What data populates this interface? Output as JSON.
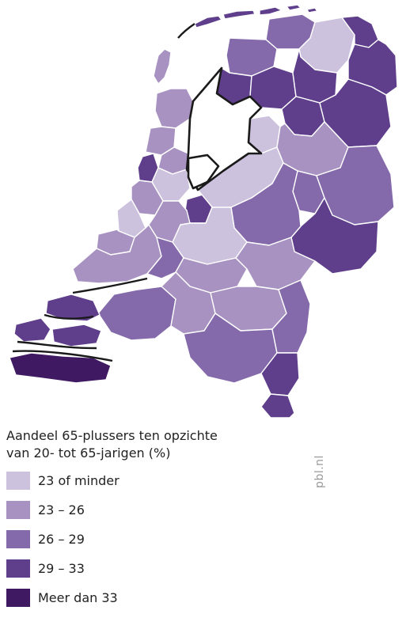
{
  "legend": {
    "title_line1": "Aandeel 65-plussers ten opzichte",
    "title_line2": "van 20- tot 65-jarigen (%)",
    "items": [
      {
        "label": "23 of minder",
        "color": "#cdc2de"
      },
      {
        "label": "23 – 26",
        "color": "#a892c1"
      },
      {
        "label": "26 – 29",
        "color": "#846aab"
      },
      {
        "label": "29 – 33",
        "color": "#5f3f8c"
      },
      {
        "label": "Meer dan 33",
        "color": "#3f1a63"
      }
    ]
  },
  "credit": "pbl.nl",
  "map": {
    "subject": "Netherlands COROP regions",
    "regions": [
      {
        "name": "texel",
        "class": 1
      },
      {
        "name": "noord-groningen-oost",
        "class": 0
      },
      {
        "name": "noord-groningen-west",
        "class": 2
      },
      {
        "name": "delfzijl-en-omgeving",
        "class": 3
      },
      {
        "name": "noord-friesland",
        "class": 3
      },
      {
        "name": "zuidwest-friesland",
        "class": 3
      },
      {
        "name": "zuidoost-friesland",
        "class": 3
      },
      {
        "name": "oost-groningen",
        "class": 3
      },
      {
        "name": "noord-drenthe",
        "class": 3
      },
      {
        "name": "zuidwest-drenthe",
        "class": 3
      },
      {
        "name": "zuidoost-drenthe",
        "class": 3
      },
      {
        "name": "kop-van-noord-holland",
        "class": 1
      },
      {
        "name": "alkmaar-en-omgeving",
        "class": 1
      },
      {
        "name": "ijmond",
        "class": 3
      },
      {
        "name": "zaanstreek",
        "class": 1
      },
      {
        "name": "groot-amsterdam",
        "class": 0
      },
      {
        "name": "het-gooi-en-vechtstreek",
        "class": 3
      },
      {
        "name": "flevoland-noord",
        "class": 0
      },
      {
        "name": "flevoland-zuid",
        "class": 0
      },
      {
        "name": "noord-overijssel",
        "class": 1
      },
      {
        "name": "zuidwest-overijssel",
        "class": 2
      },
      {
        "name": "twente",
        "class": 2
      },
      {
        "name": "achterhoek",
        "class": 3
      },
      {
        "name": "veluwe",
        "class": 2
      },
      {
        "name": "utrecht",
        "class": 0
      },
      {
        "name": "agglomeratie-leiden",
        "class": 1
      },
      {
        "name": "agglomeratie-den-haag",
        "class": 0
      },
      {
        "name": "delft-en-westland",
        "class": 1
      },
      {
        "name": "oost-zuid-holland",
        "class": 1
      },
      {
        "name": "groot-rijnmond",
        "class": 1
      },
      {
        "name": "zuidoost-zuid-holland",
        "class": 2
      },
      {
        "name": "arnhem-nijmegen",
        "class": 1
      },
      {
        "name": "zuidwest-gelderland",
        "class": 1
      },
      {
        "name": "west-noord-brabant",
        "class": 2
      },
      {
        "name": "midden-noord-brabant",
        "class": 1
      },
      {
        "name": "noordoost-noord-brabant",
        "class": 1
      },
      {
        "name": "zuidoost-noord-brabant",
        "class": 2
      },
      {
        "name": "noord-limburg",
        "class": 2
      },
      {
        "name": "midden-limburg",
        "class": 3
      },
      {
        "name": "zuid-limburg",
        "class": 3
      },
      {
        "name": "overig-zeeland",
        "class": 3
      },
      {
        "name": "zeeuwsch-vlaanderen",
        "class": 4
      }
    ]
  }
}
